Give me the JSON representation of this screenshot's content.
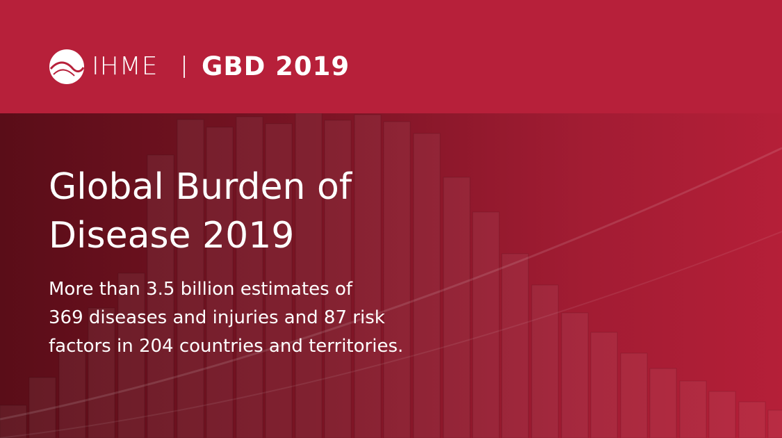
{
  "header": {
    "logo_text": "IHME",
    "product": "GBD 2019"
  },
  "title_lines": [
    "Global Burden of",
    "Disease 2019"
  ],
  "description_lines": [
    "More than 3.5 billion estimates of",
    "369 diseases and injuries and 87 risk",
    "factors in 204 countries and territories."
  ]
}
